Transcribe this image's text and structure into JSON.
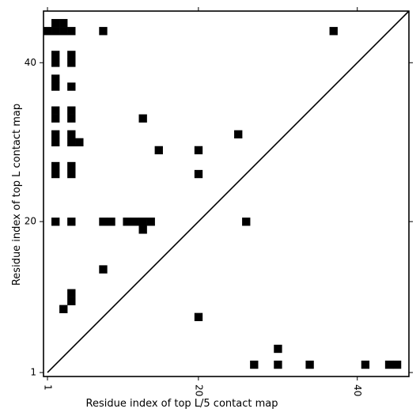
{
  "chart_data": {
    "type": "heatmap",
    "title": "",
    "xlabel": "Residue index of top L/5 contact map",
    "ylabel": "Residue index of top L contact map",
    "xlim": [
      0.5,
      46.5
    ],
    "ylim": [
      0.5,
      46.5
    ],
    "x_ticks": [
      "1",
      "20",
      "40"
    ],
    "y_ticks": [
      "1",
      "20",
      "40"
    ],
    "x_tick_values": [
      1,
      20,
      40
    ],
    "y_tick_values": [
      1,
      20,
      40
    ],
    "grid": false,
    "cell_color": "#000000",
    "diagonal": true,
    "upper_cells": [
      [
        1,
        44
      ],
      [
        2,
        44
      ],
      [
        3,
        44
      ],
      [
        4,
        44
      ],
      [
        2,
        45
      ],
      [
        3,
        45
      ],
      [
        8,
        44
      ],
      [
        37,
        44
      ],
      [
        2,
        41
      ],
      [
        2,
        40
      ],
      [
        4,
        41
      ],
      [
        4,
        40
      ],
      [
        2,
        38
      ],
      [
        2,
        37
      ],
      [
        4,
        37
      ],
      [
        2,
        34
      ],
      [
        2,
        33
      ],
      [
        4,
        34
      ],
      [
        4,
        33
      ],
      [
        13,
        33
      ],
      [
        2,
        31
      ],
      [
        2,
        30
      ],
      [
        4,
        31
      ],
      [
        4,
        30
      ],
      [
        5,
        30
      ],
      [
        25,
        31
      ],
      [
        15,
        29
      ],
      [
        20,
        29
      ],
      [
        2,
        27
      ],
      [
        2,
        26
      ],
      [
        4,
        27
      ],
      [
        4,
        26
      ],
      [
        20,
        26
      ],
      [
        2,
        20
      ],
      [
        4,
        20
      ],
      [
        8,
        20
      ],
      [
        9,
        20
      ],
      [
        11,
        20
      ],
      [
        12,
        20
      ],
      [
        13,
        20
      ],
      [
        14,
        20
      ],
      [
        13,
        19
      ],
      [
        26,
        20
      ]
    ],
    "lower_cells": [
      [
        8,
        14
      ],
      [
        4,
        11
      ],
      [
        4,
        10
      ],
      [
        3,
        9
      ],
      [
        20,
        8
      ],
      [
        30,
        4
      ],
      [
        27,
        2
      ],
      [
        30,
        2
      ],
      [
        34,
        2
      ],
      [
        41,
        2
      ],
      [
        44,
        2
      ],
      [
        45,
        2
      ]
    ]
  }
}
